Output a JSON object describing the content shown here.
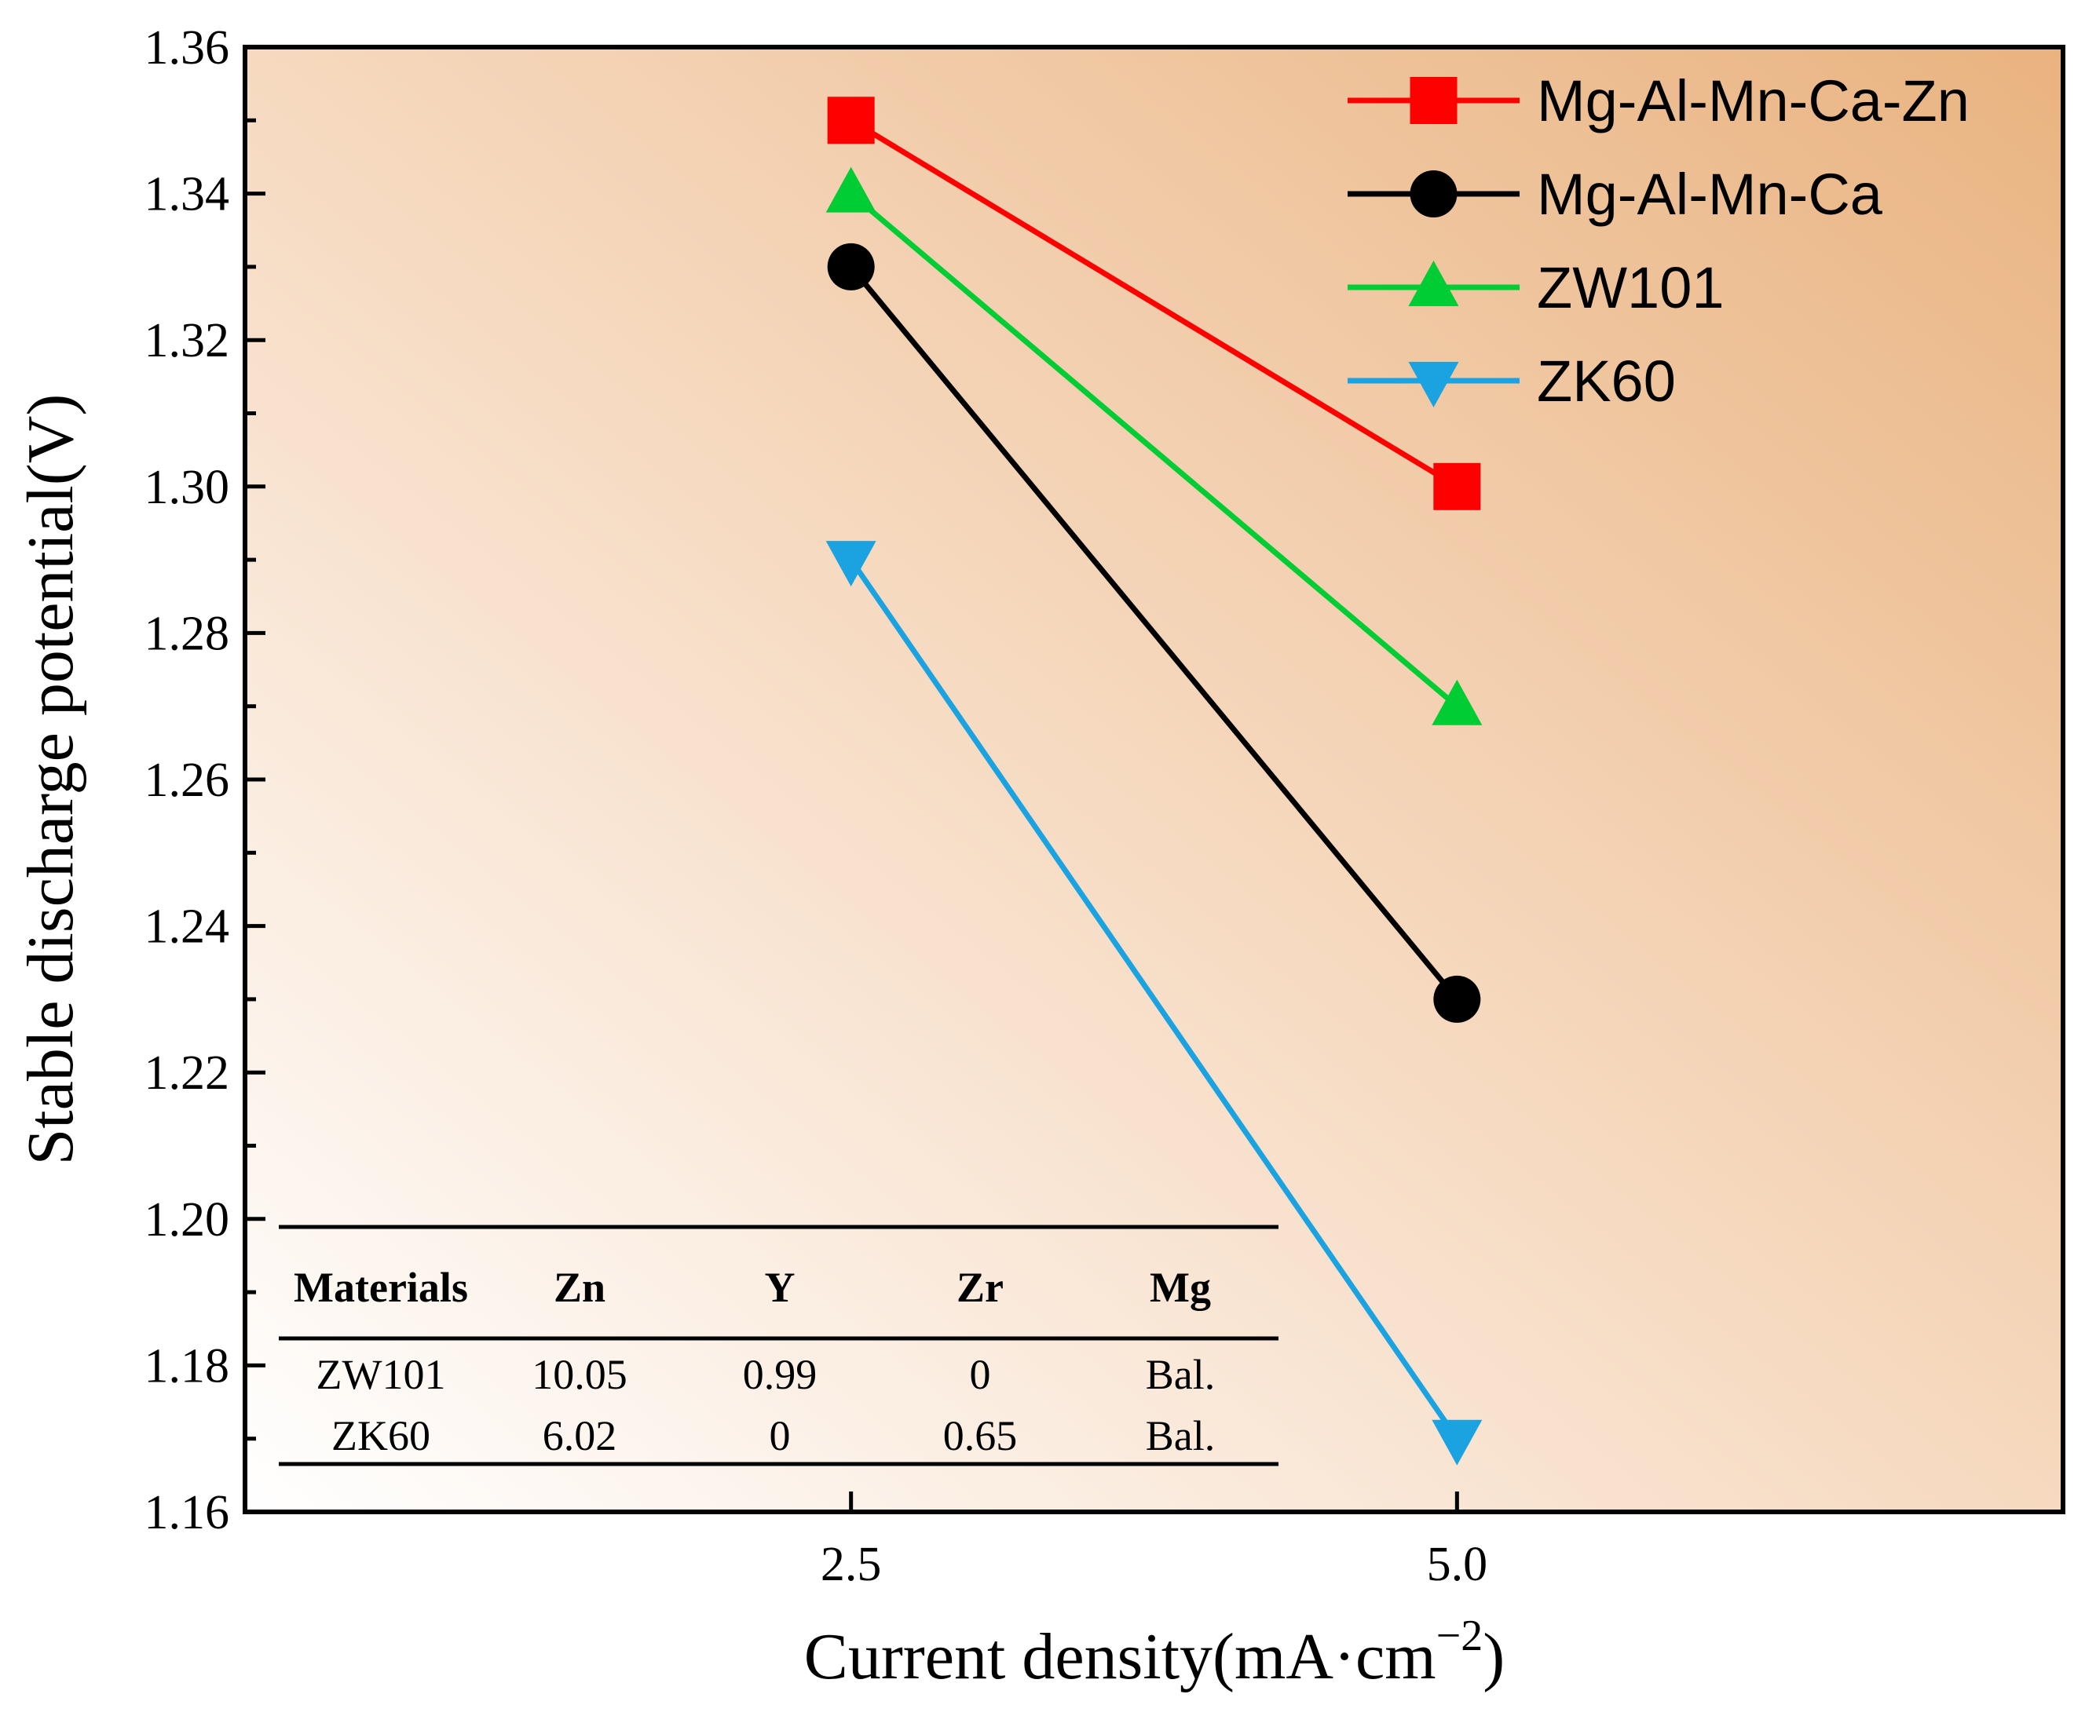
{
  "chart_data": {
    "type": "line",
    "title": "",
    "xlabel": "Current density(mA·cm",
    "xlabel_superscript": "−2",
    "xlabel_close": ")",
    "ylabel": "Stable discharge potential(V)",
    "ylim": [
      1.16,
      1.36
    ],
    "yticks": [
      "1.16",
      "1.18",
      "1.20",
      "1.22",
      "1.24",
      "1.26",
      "1.28",
      "1.30",
      "1.32",
      "1.34",
      "1.36"
    ],
    "xlim": [
      0,
      7.5
    ],
    "xticks": [
      "2.5",
      "5.0"
    ],
    "x": [
      2.5,
      5.0
    ],
    "series": [
      {
        "name": "Mg-Al-Mn-Ca-Zn",
        "color": "#ff0000",
        "marker": "square",
        "values": [
          1.35,
          1.3
        ]
      },
      {
        "name": "Mg-Al-Mn-Ca",
        "color": "#000000",
        "marker": "circle",
        "values": [
          1.33,
          1.23
        ]
      },
      {
        "name": "ZW101",
        "color": "#00cc33",
        "marker": "triangle-up",
        "values": [
          1.34,
          1.27
        ]
      },
      {
        "name": "ZK60",
        "color": "#1aa3e0",
        "marker": "triangle-down",
        "values": [
          1.29,
          1.17
        ]
      }
    ],
    "legend_position": "top-right",
    "grid": false,
    "inset_table": {
      "headers": [
        "Materials",
        "Zn",
        "Y",
        "Zr",
        "Mg"
      ],
      "rows": [
        [
          "ZW101",
          "10.05",
          "0.99",
          "0",
          "Bal."
        ],
        [
          "ZK60",
          "6.02",
          "0",
          "0.65",
          "Bal."
        ]
      ]
    }
  }
}
